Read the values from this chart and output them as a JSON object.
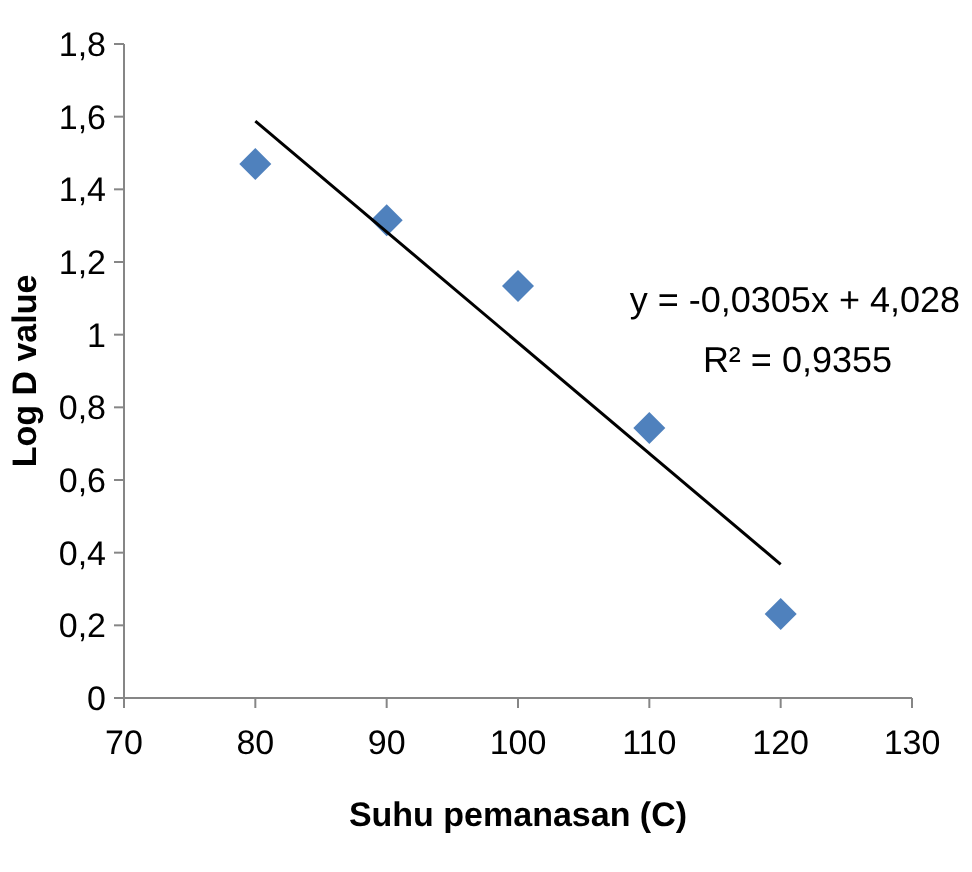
{
  "chart_data": {
    "type": "scatter",
    "xlabel": "Suhu pemanasan (C)",
    "ylabel": "Log D value",
    "xlim": [
      70,
      130
    ],
    "xticks": [
      70,
      80,
      90,
      100,
      110,
      120,
      130
    ],
    "ylim": [
      0,
      1.8
    ],
    "yticks": [
      0,
      {
        "value": 0.2,
        "label": "0,2"
      },
      {
        "value": 0.4,
        "label": "0,4"
      },
      {
        "value": 0.6,
        "label": "0,6"
      },
      {
        "value": 0.8,
        "label": "0,8"
      },
      1,
      {
        "value": 1.2,
        "label": "1,2"
      },
      {
        "value": 1.4,
        "label": "1,4"
      },
      {
        "value": 1.6,
        "label": "1,6"
      },
      {
        "value": 1.8,
        "label": "1,8"
      }
    ],
    "grid": false,
    "marker": "diamond",
    "series": [
      {
        "color": "#4f81bd",
        "x": [
          80,
          90,
          100,
          110,
          120
        ],
        "values": [
          1.47,
          1.315,
          1.134,
          0.743,
          0.231
        ]
      },
      {
        "type": "line",
        "color": "#000000",
        "x": [
          80,
          120
        ],
        "values": [
          1.588,
          0.368
        ],
        "marker": "none"
      }
    ],
    "annotations": [
      "y = -0,0305x + 4,028",
      "R² = 0,9355"
    ]
  }
}
